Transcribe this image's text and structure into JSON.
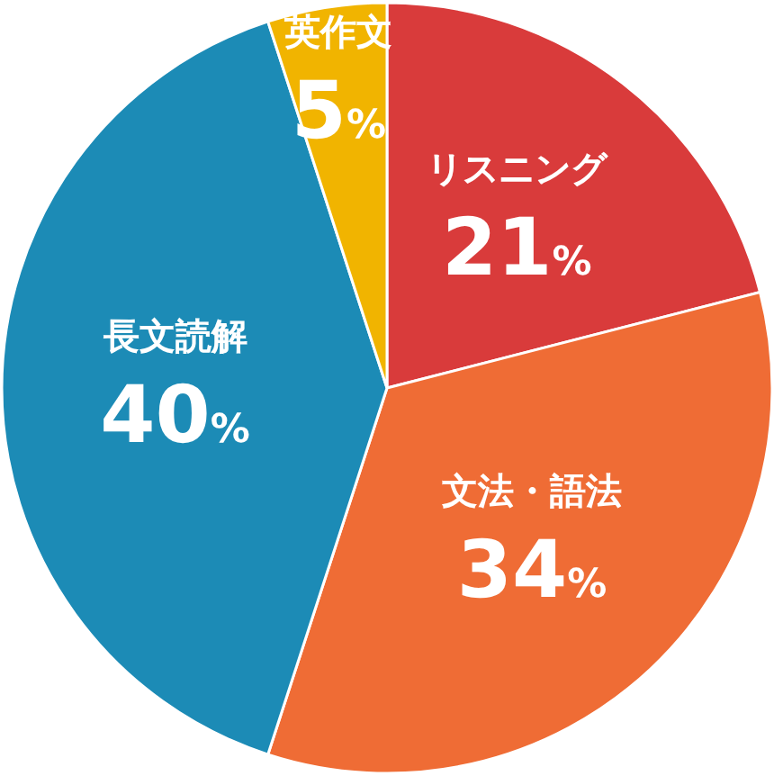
{
  "chart_data": {
    "type": "pie",
    "categories": [
      "リスニング",
      "文法・語法",
      "長文読解",
      "英作文"
    ],
    "values": [
      21,
      34,
      40,
      5
    ],
    "colors": [
      "#d93b3b",
      "#ef6c35",
      "#1c8bb6",
      "#f1b400"
    ],
    "value_labels": [
      "21%",
      "34%",
      "40%",
      "5%"
    ],
    "legend": false
  }
}
